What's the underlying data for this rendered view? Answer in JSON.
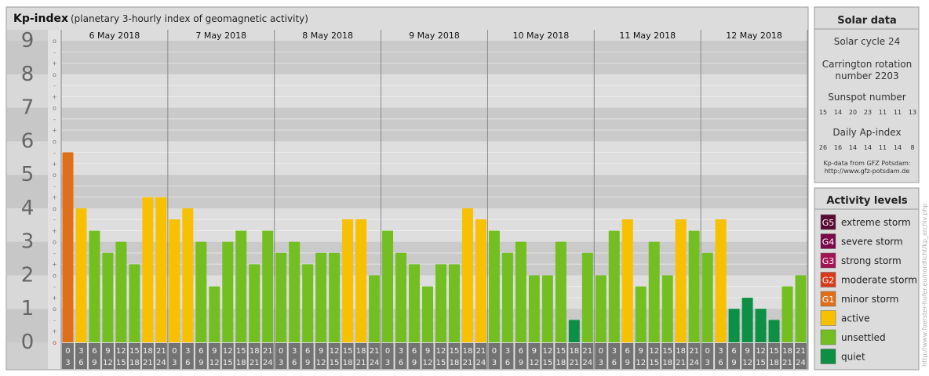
{
  "header": {
    "title": "Kp-index",
    "subtitle": "(planetary 3-hourly index of geomagnetic activity)"
  },
  "chart_data": {
    "type": "bar",
    "ylim": [
      0,
      9
    ],
    "y_ticks": [
      "0",
      "1",
      "2",
      "3",
      "4",
      "5",
      "6",
      "7",
      "8",
      "9"
    ],
    "sub_ticks": [
      "o",
      "+",
      "-"
    ],
    "days": [
      "6 May 2018",
      "7 May 2018",
      "8 May 2018",
      "9 May 2018",
      "10 May 2018",
      "11 May 2018",
      "12 May 2018"
    ],
    "interval_labels": [
      [
        "0",
        "3"
      ],
      [
        "3",
        "6"
      ],
      [
        "6",
        "9"
      ],
      [
        "9",
        "12"
      ],
      [
        "12",
        "15"
      ],
      [
        "15",
        "18"
      ],
      [
        "18",
        "21"
      ],
      [
        "21",
        "24"
      ]
    ],
    "values": [
      5.67,
      4.0,
      3.33,
      2.67,
      3.0,
      2.33,
      4.33,
      4.33,
      3.67,
      4.0,
      3.0,
      1.67,
      3.0,
      3.33,
      2.33,
      3.33,
      2.67,
      3.0,
      2.33,
      2.67,
      2.67,
      3.67,
      3.67,
      2.0,
      3.33,
      2.67,
      2.33,
      1.67,
      2.33,
      2.33,
      4.0,
      3.67,
      3.33,
      2.67,
      3.0,
      2.0,
      2.0,
      3.0,
      0.67,
      2.67,
      2.0,
      3.33,
      3.67,
      1.67,
      3.0,
      2.0,
      3.67,
      3.33,
      2.67,
      3.67,
      1.0,
      1.33,
      1.0,
      0.67,
      1.67,
      2.0
    ],
    "colors": {
      "G5": "#5a0a32",
      "G4": "#7a0a4a",
      "G3": "#a31452",
      "G2": "#d93a1c",
      "G1": "#e06f1a",
      "active": "#f7c100",
      "unsettled": "#73bf22",
      "quiet": "#0d8f45"
    }
  },
  "sidebar": {
    "solar_title": "Solar data",
    "solar_cycle": "Solar cycle 24",
    "carrington_line1": "Carrington rotation",
    "carrington_line2": "number 2203",
    "sunspot_label": "Sunspot number",
    "sunspot_values": [
      "15",
      "14",
      "20",
      "23",
      "11",
      "11",
      "13"
    ],
    "ap_label": "Daily Ap-index",
    "ap_values": [
      "26",
      "16",
      "14",
      "14",
      "11",
      "14",
      "8"
    ],
    "source_line1": "Kp-data from GFZ Potsdam:",
    "source_line2": "http://www.gfz-potsdam.de",
    "activity_title": "Activity levels",
    "legend": [
      {
        "badge": "G5",
        "label": "extreme storm",
        "color": "#5a0a32"
      },
      {
        "badge": "G4",
        "label": "severe storm",
        "color": "#7a0a4a"
      },
      {
        "badge": "G3",
        "label": "strong storm",
        "color": "#a31452"
      },
      {
        "badge": "G2",
        "label": "moderate storm",
        "color": "#d93a1c"
      },
      {
        "badge": "G1",
        "label": "minor storm",
        "color": "#e06f1a"
      },
      {
        "badge": "",
        "label": "active",
        "color": "#f7c100"
      },
      {
        "badge": "",
        "label": "unsettled",
        "color": "#73bf22"
      },
      {
        "badge": "",
        "label": "quiet",
        "color": "#0d8f45"
      }
    ],
    "watermark": "http://www.foerster-hofer.eu/nordlicht/kp_archiv.php"
  }
}
